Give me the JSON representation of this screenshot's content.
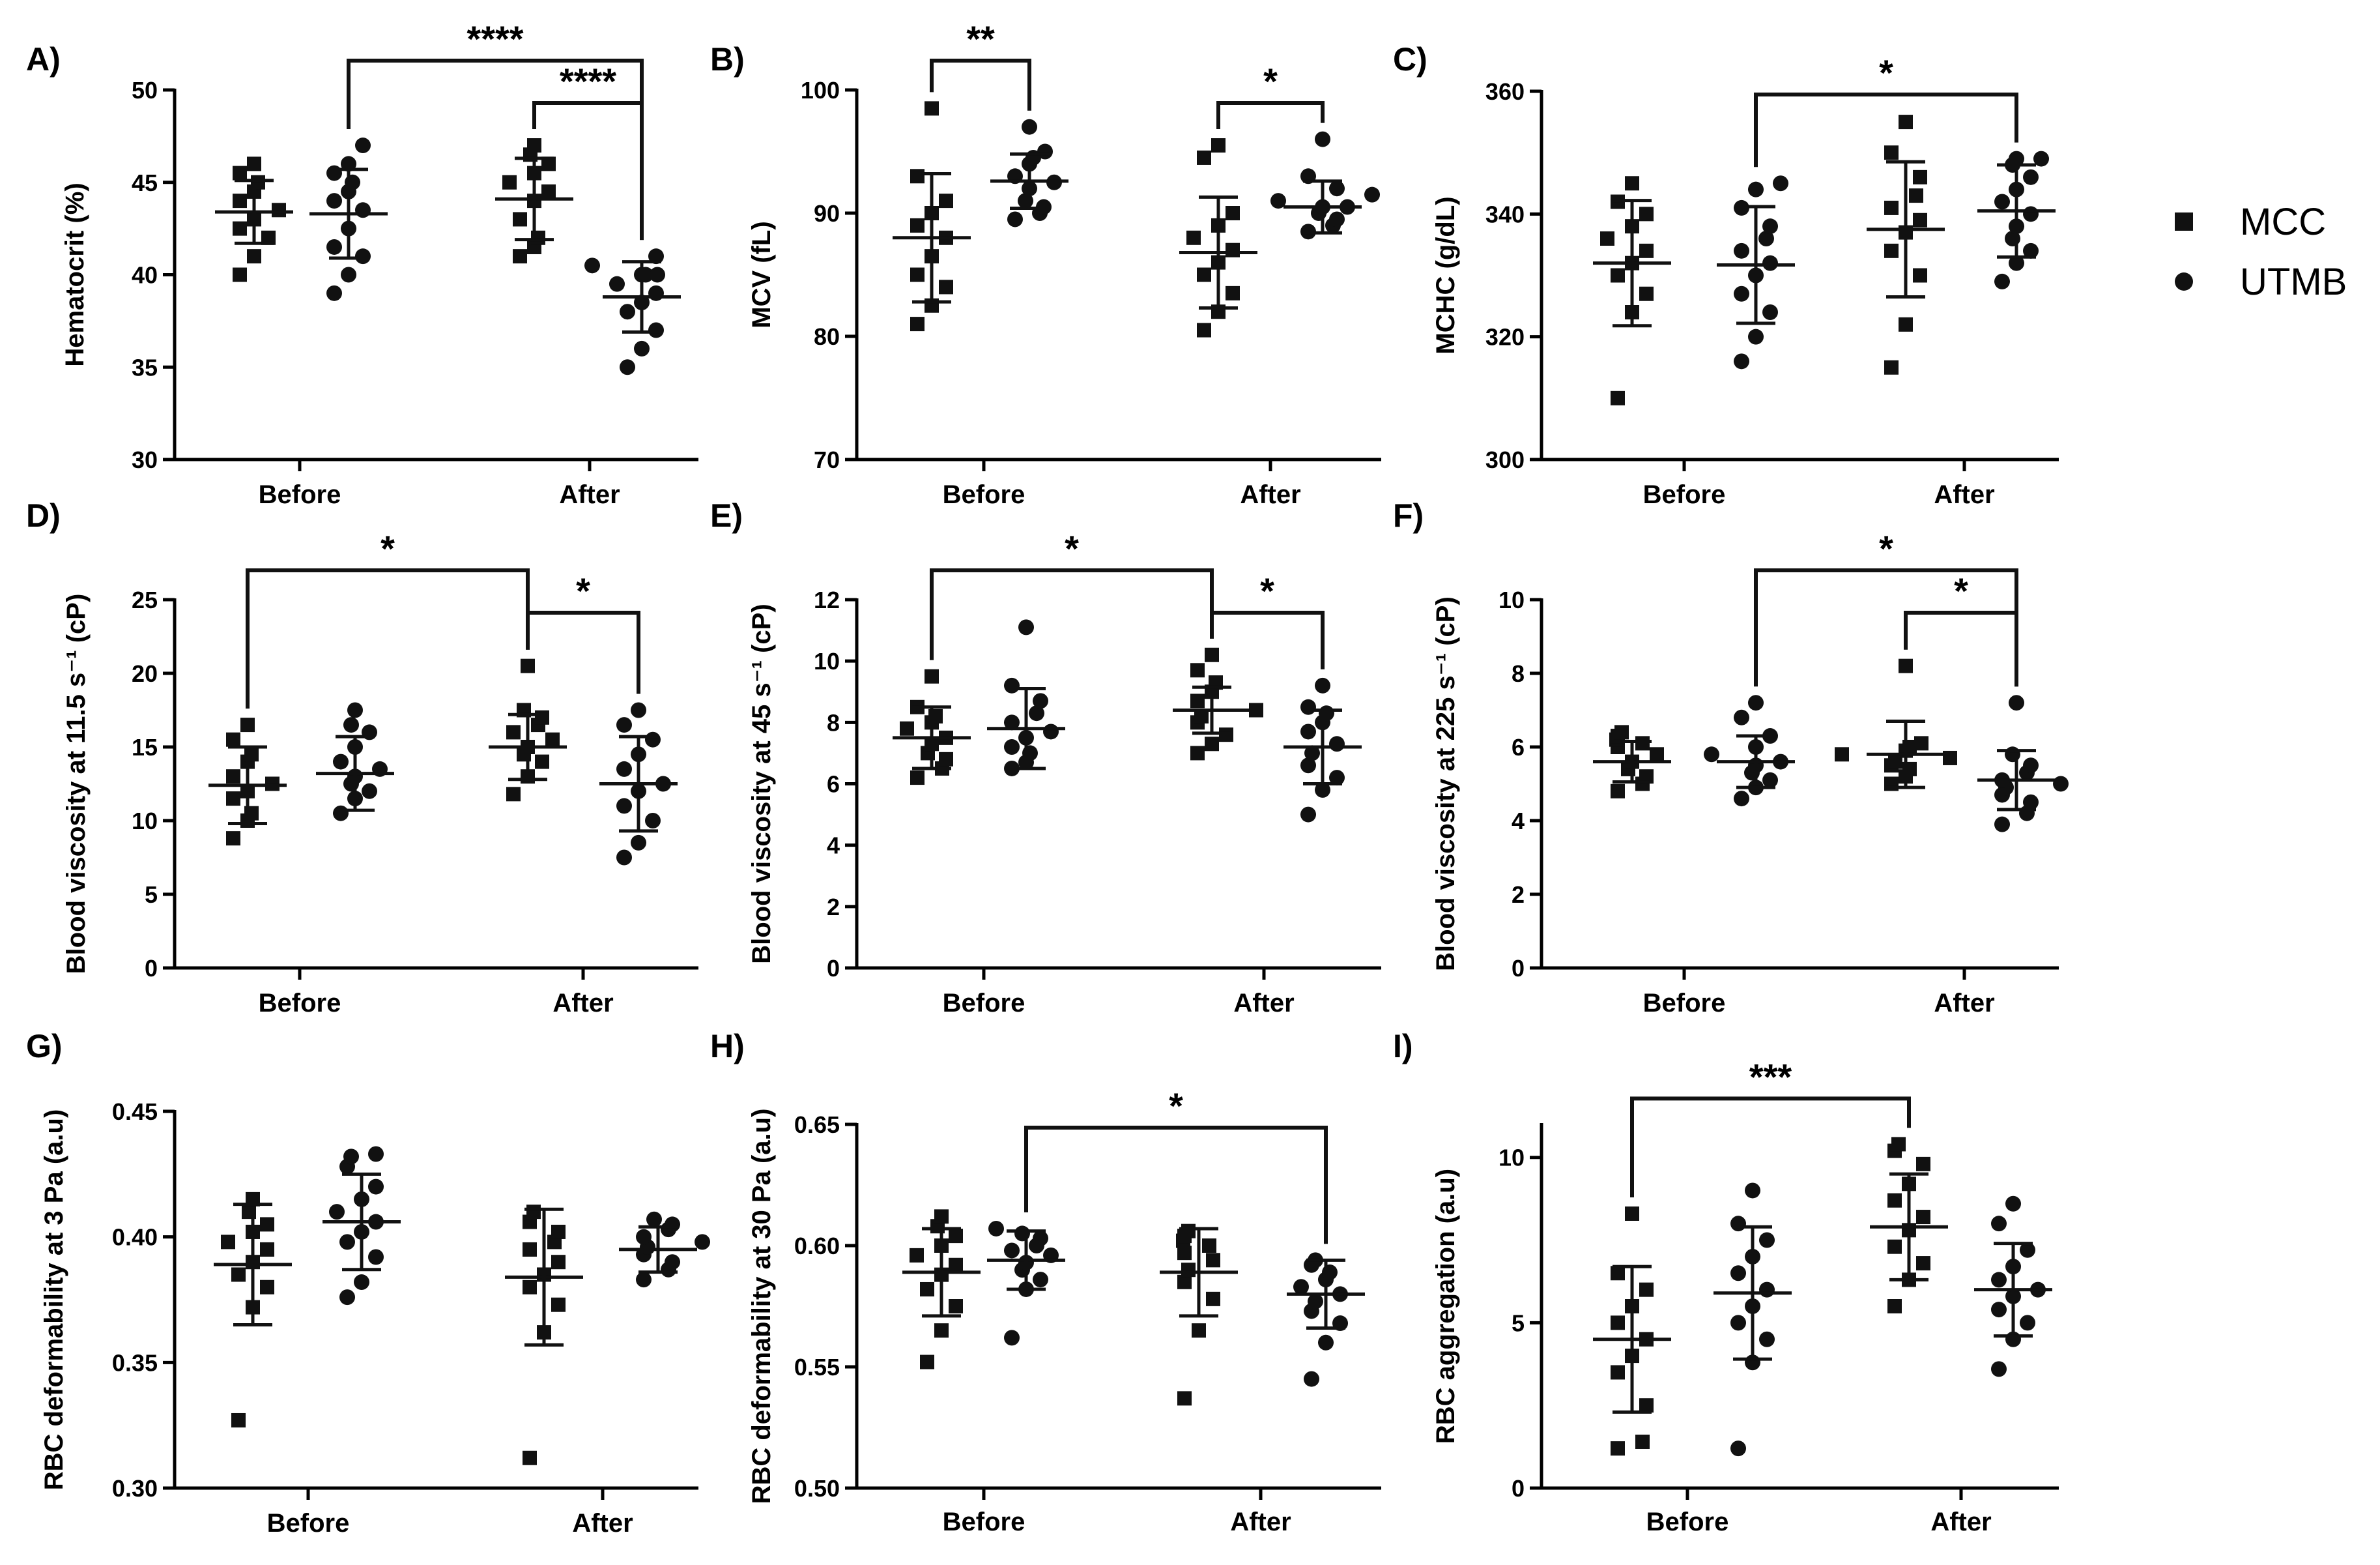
{
  "legend": {
    "entries": [
      {
        "label": "MCC",
        "marker": "square-icon"
      },
      {
        "label": "UTMB",
        "marker": "circle-icon"
      }
    ]
  },
  "colors": {
    "marks": "#111111",
    "axes": "#000000"
  },
  "chart_data": [
    {
      "panel": "A)",
      "type": "scatter",
      "ylabel": "Hematocrit (%)",
      "ylim": [
        30,
        50
      ],
      "yticks": [
        30,
        35,
        40,
        45,
        50
      ],
      "categories": [
        "Before",
        "After"
      ],
      "series": [
        {
          "name": "MCC",
          "marker": "square",
          "values": [
            [
              40.0,
              41.0,
              42.0,
              42.5,
              43.0,
              43.5,
              44.0,
              44.5,
              45.0,
              45.5,
              46.0
            ],
            [
              41.0,
              41.5,
              42.0,
              43.0,
              44.0,
              44.5,
              45.0,
              45.5,
              46.0,
              46.5,
              47.0
            ]
          ],
          "mean": [
            43.4,
            44.1
          ],
          "sd": [
            1.7,
            2.2
          ]
        },
        {
          "name": "UTMB",
          "marker": "circle",
          "values": [
            [
              39.0,
              40.0,
              41.0,
              41.5,
              42.5,
              43.5,
              44.0,
              44.5,
              45.0,
              45.5,
              46.0,
              47.0
            ],
            [
              35.0,
              36.0,
              37.0,
              38.0,
              38.5,
              39.0,
              39.5,
              40.0,
              40.0,
              40.0,
              40.5,
              41.0
            ]
          ],
          "mean": [
            43.3,
            38.8
          ],
          "sd": [
            2.4,
            1.9
          ]
        }
      ],
      "annotations": [
        {
          "from": [
            0,
            "UTMB"
          ],
          "to": [
            1,
            "UTMB"
          ],
          "label": "****"
        },
        {
          "from": [
            1,
            "MCC"
          ],
          "to": [
            1,
            "UTMB"
          ],
          "label": "****"
        }
      ]
    },
    {
      "panel": "B)",
      "type": "scatter",
      "ylabel": "MCV (fL)",
      "ylim": [
        70,
        100
      ],
      "yticks": [
        70,
        80,
        90,
        100
      ],
      "categories": [
        "Before",
        "After"
      ],
      "series": [
        {
          "name": "MCC",
          "marker": "square",
          "values": [
            [
              81.0,
              82.5,
              84.0,
              85.0,
              86.5,
              88.0,
              89.0,
              90.0,
              91.0,
              93.0,
              98.5
            ],
            [
              80.5,
              82.0,
              83.5,
              85.0,
              86.0,
              87.0,
              88.0,
              89.0,
              90.0,
              94.5,
              95.5
            ]
          ],
          "mean": [
            88.0,
            86.8
          ],
          "sd": [
            5.2,
            4.5
          ]
        },
        {
          "name": "UTMB",
          "marker": "circle",
          "values": [
            [
              89.5,
              90.0,
              90.5,
              91.0,
              92.0,
              92.5,
              93.0,
              94.0,
              94.5,
              95.0,
              97.0
            ],
            [
              88.5,
              89.0,
              89.5,
              90.0,
              90.5,
              90.5,
              91.0,
              91.5,
              92.0,
              93.0,
              96.0
            ]
          ],
          "mean": [
            92.6,
            90.5
          ],
          "sd": [
            2.2,
            2.1
          ]
        }
      ],
      "annotations": [
        {
          "from": [
            0,
            "MCC"
          ],
          "to": [
            0,
            "UTMB"
          ],
          "label": "**"
        },
        {
          "from": [
            1,
            "MCC"
          ],
          "to": [
            1,
            "UTMB"
          ],
          "label": "*"
        }
      ]
    },
    {
      "panel": "C)",
      "type": "scatter",
      "ylabel": "MCHC (g/dL)",
      "ylim": [
        300,
        360
      ],
      "yticks": [
        300,
        320,
        340,
        360
      ],
      "categories": [
        "Before",
        "After"
      ],
      "series": [
        {
          "name": "MCC",
          "marker": "square",
          "values": [
            [
              310,
              324,
              327,
              330,
              332,
              334,
              336,
              338,
              340,
              342,
              345
            ],
            [
              315,
              322,
              330,
              334,
              337,
              339,
              341,
              343,
              346,
              350,
              355
            ]
          ],
          "mean": [
            332.0,
            337.5
          ],
          "sd": [
            10.2,
            11.0
          ]
        },
        {
          "name": "UTMB",
          "marker": "circle",
          "values": [
            [
              316,
              320,
              324,
              327,
              330,
              332,
              334,
              336,
              338,
              341,
              344,
              345
            ],
            [
              329,
              332,
              334,
              336,
              338,
              340,
              342,
              344,
              346,
              348,
              349,
              349
            ]
          ],
          "mean": [
            331.7,
            340.5
          ],
          "sd": [
            9.5,
            7.5
          ]
        }
      ],
      "annotations": [
        {
          "from": [
            0,
            "UTMB"
          ],
          "to": [
            1,
            "UTMB"
          ],
          "label": "*"
        }
      ]
    },
    {
      "panel": "D)",
      "type": "scatter",
      "ylabel": "Blood viscosity at 11.5 s⁻¹ (cP)",
      "ylim": [
        0,
        25
      ],
      "yticks": [
        0,
        5,
        10,
        15,
        20,
        25
      ],
      "categories": [
        "Before",
        "After"
      ],
      "series": [
        {
          "name": "MCC",
          "marker": "square",
          "values": [
            [
              8.8,
              10.0,
              10.5,
              11.5,
              12.0,
              12.5,
              13.0,
              14.0,
              14.5,
              15.5,
              16.5
            ],
            [
              11.8,
              13.0,
              14.0,
              14.5,
              15.0,
              15.5,
              16.0,
              16.5,
              17.0,
              17.5,
              20.5
            ]
          ],
          "mean": [
            12.4,
            15.0
          ],
          "sd": [
            2.6,
            2.2
          ]
        },
        {
          "name": "UTMB",
          "marker": "circle",
          "values": [
            [
              10.5,
              11.5,
              12.0,
              12.5,
              13.0,
              13.5,
              14.0,
              15.0,
              16.0,
              16.5,
              17.5
            ],
            [
              7.5,
              8.5,
              10.0,
              11.0,
              12.0,
              12.5,
              13.5,
              14.5,
              15.5,
              16.5,
              17.5
            ]
          ],
          "mean": [
            13.2,
            12.5
          ],
          "sd": [
            2.5,
            3.2
          ]
        }
      ],
      "annotations": [
        {
          "from": [
            0,
            "MCC"
          ],
          "to": [
            1,
            "MCC"
          ],
          "label": "*"
        },
        {
          "from": [
            1,
            "MCC"
          ],
          "to": [
            1,
            "UTMB"
          ],
          "label": "*"
        }
      ]
    },
    {
      "panel": "E)",
      "type": "scatter",
      "ylabel": "Blood viscosity at 45 s⁻¹ (cP)",
      "ylim": [
        0,
        12
      ],
      "yticks": [
        0,
        2,
        4,
        6,
        8,
        10,
        12
      ],
      "categories": [
        "Before",
        "After"
      ],
      "series": [
        {
          "name": "MCC",
          "marker": "square",
          "values": [
            [
              6.2,
              6.5,
              6.8,
              7.0,
              7.3,
              7.5,
              7.8,
              8.0,
              8.2,
              8.5,
              9.5
            ],
            [
              7.0,
              7.3,
              7.6,
              8.0,
              8.2,
              8.4,
              8.7,
              9.0,
              9.3,
              9.7,
              10.2
            ]
          ],
          "mean": [
            7.5,
            8.4
          ],
          "sd": [
            1.0,
            0.75
          ]
        },
        {
          "name": "UTMB",
          "marker": "circle",
          "values": [
            [
              6.5,
              6.7,
              7.0,
              7.2,
              7.5,
              7.7,
              8.0,
              8.3,
              8.7,
              9.2,
              11.1
            ],
            [
              5.0,
              5.8,
              6.2,
              6.6,
              7.0,
              7.3,
              7.7,
              8.0,
              8.3,
              8.5,
              9.2
            ]
          ],
          "mean": [
            7.8,
            7.2
          ],
          "sd": [
            1.3,
            1.2
          ]
        }
      ],
      "annotations": [
        {
          "from": [
            0,
            "MCC"
          ],
          "to": [
            1,
            "MCC"
          ],
          "label": "*"
        },
        {
          "from": [
            1,
            "MCC"
          ],
          "to": [
            1,
            "UTMB"
          ],
          "label": "*"
        }
      ]
    },
    {
      "panel": "F)",
      "type": "scatter",
      "ylabel": "Blood viscosity at 225 s⁻¹ (cP)",
      "ylim": [
        0,
        10
      ],
      "yticks": [
        0,
        2,
        4,
        6,
        8,
        10
      ],
      "categories": [
        "Before",
        "After"
      ],
      "series": [
        {
          "name": "MCC",
          "marker": "square",
          "values": [
            [
              4.8,
              5.0,
              5.2,
              5.4,
              5.6,
              5.8,
              6.0,
              6.1,
              6.2,
              6.3,
              6.4
            ],
            [
              5.0,
              5.2,
              5.4,
              5.5,
              5.6,
              5.7,
              5.8,
              5.9,
              6.0,
              6.1,
              8.2
            ]
          ],
          "mean": [
            5.6,
            5.8
          ],
          "sd": [
            0.55,
            0.9
          ]
        },
        {
          "name": "UTMB",
          "marker": "circle",
          "values": [
            [
              4.6,
              4.9,
              5.1,
              5.3,
              5.5,
              5.6,
              5.8,
              6.0,
              6.3,
              6.8,
              7.2
            ],
            [
              3.9,
              4.2,
              4.5,
              4.7,
              4.9,
              5.0,
              5.1,
              5.3,
              5.5,
              5.8,
              7.2
            ]
          ],
          "mean": [
            5.6,
            5.1
          ],
          "sd": [
            0.7,
            0.8
          ]
        }
      ],
      "annotations": [
        {
          "from": [
            0,
            "UTMB"
          ],
          "to": [
            1,
            "UTMB"
          ],
          "label": "*"
        },
        {
          "from": [
            1,
            "MCC"
          ],
          "to": [
            1,
            "UTMB"
          ],
          "label": "*"
        }
      ]
    },
    {
      "panel": "G)",
      "type": "scatter",
      "ylabel": "RBC deformability at 3 Pa (a.u)",
      "ylim": [
        0.3,
        0.45
      ],
      "yticks": [
        0.3,
        0.35,
        0.4,
        0.45
      ],
      "categories": [
        "Before",
        "After"
      ],
      "series": [
        {
          "name": "MCC",
          "marker": "square",
          "values": [
            [
              0.327,
              0.372,
              0.38,
              0.385,
              0.39,
              0.395,
              0.398,
              0.402,
              0.405,
              0.41,
              0.415
            ],
            [
              0.312,
              0.362,
              0.373,
              0.38,
              0.385,
              0.39,
              0.395,
              0.398,
              0.402,
              0.406,
              0.41
            ]
          ],
          "mean": [
            0.389,
            0.384
          ],
          "sd": [
            0.024,
            0.027
          ]
        },
        {
          "name": "UTMB",
          "marker": "circle",
          "values": [
            [
              0.376,
              0.382,
              0.392,
              0.398,
              0.402,
              0.406,
              0.41,
              0.415,
              0.42,
              0.428,
              0.432,
              0.433
            ],
            [
              0.383,
              0.387,
              0.39,
              0.393,
              0.396,
              0.398,
              0.4,
              0.403,
              0.405,
              0.407
            ]
          ],
          "mean": [
            0.406,
            0.395
          ],
          "sd": [
            0.019,
            0.009
          ]
        }
      ],
      "annotations": []
    },
    {
      "panel": "H)",
      "type": "scatter",
      "ylabel": "RBC deformability at 30 Pa (a.u)",
      "ylim": [
        0.5,
        0.65
      ],
      "yticks": [
        0.5,
        0.55,
        0.6,
        0.65
      ],
      "categories": [
        "Before",
        "After"
      ],
      "series": [
        {
          "name": "MCC",
          "marker": "square",
          "values": [
            [
              0.552,
              0.565,
              0.575,
              0.582,
              0.588,
              0.592,
              0.596,
              0.6,
              0.604,
              0.608,
              0.612
            ],
            [
              0.537,
              0.565,
              0.578,
              0.585,
              0.59,
              0.594,
              0.597,
              0.6,
              0.602,
              0.604,
              0.606
            ]
          ],
          "mean": [
            0.589,
            0.589
          ],
          "sd": [
            0.018,
            0.018
          ]
        },
        {
          "name": "UTMB",
          "marker": "circle",
          "values": [
            [
              0.562,
              0.582,
              0.586,
              0.59,
              0.593,
              0.596,
              0.598,
              0.6,
              0.603,
              0.605,
              0.607
            ],
            [
              0.545,
              0.56,
              0.568,
              0.573,
              0.577,
              0.58,
              0.583,
              0.586,
              0.589,
              0.592,
              0.594
            ]
          ],
          "mean": [
            0.594,
            0.58
          ],
          "sd": [
            0.012,
            0.014
          ]
        }
      ],
      "annotations": [
        {
          "from": [
            0,
            "UTMB"
          ],
          "to": [
            1,
            "UTMB"
          ],
          "label": "*"
        }
      ]
    },
    {
      "panel": "I)",
      "type": "scatter",
      "ylabel": "RBC aggregation (a.u)",
      "ylim": [
        0,
        11
      ],
      "yticks": [
        0,
        5,
        10
      ],
      "categories": [
        "Before",
        "After"
      ],
      "series": [
        {
          "name": "MCC",
          "marker": "square",
          "values": [
            [
              1.2,
              1.4,
              2.5,
              3.5,
              4.0,
              4.5,
              5.0,
              5.5,
              6.0,
              6.5,
              8.3
            ],
            [
              5.5,
              6.3,
              6.8,
              7.3,
              7.8,
              8.2,
              8.7,
              9.2,
              9.8,
              10.2,
              10.4
            ]
          ],
          "mean": [
            4.5,
            7.9
          ],
          "sd": [
            2.2,
            1.6
          ]
        },
        {
          "name": "UTMB",
          "marker": "circle",
          "values": [
            [
              1.2,
              3.8,
              4.5,
              5.0,
              5.5,
              6.0,
              6.5,
              7.0,
              7.5,
              8.0,
              9.0
            ],
            [
              3.6,
              4.5,
              5.0,
              5.4,
              5.8,
              6.0,
              6.3,
              6.7,
              7.2,
              8.0,
              8.6
            ]
          ],
          "mean": [
            5.9,
            6.0
          ],
          "sd": [
            2.0,
            1.4
          ]
        }
      ],
      "annotations": [
        {
          "from": [
            0,
            "MCC"
          ],
          "to": [
            1,
            "MCC"
          ],
          "label": "***"
        }
      ]
    }
  ]
}
